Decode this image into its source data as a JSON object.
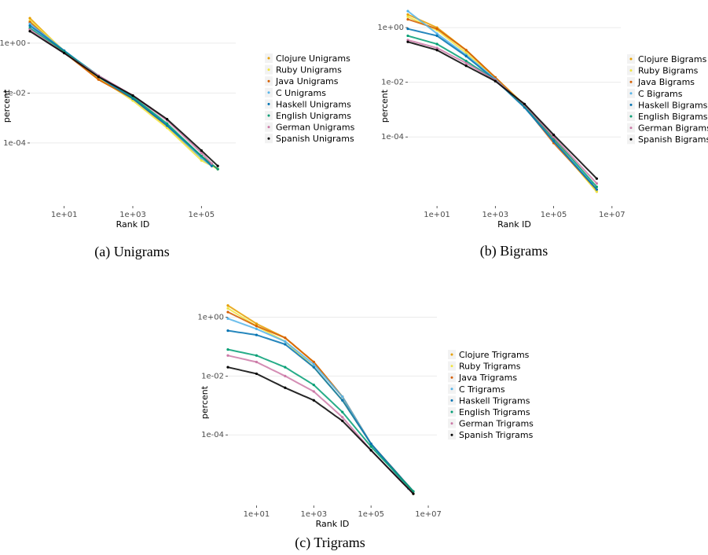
{
  "chart_data": [
    {
      "type": "scatter",
      "caption": "(a) Unigrams",
      "xlabel": "Rank ID",
      "ylabel": "percent",
      "x_scale": "log10",
      "y_scale": "log10",
      "xlim": [
        1,
        1000000
      ],
      "ylim": [
        3e-07,
        30
      ],
      "x_ticks": [
        "1e+01",
        "1e+03",
        "1e+05"
      ],
      "y_ticks": [
        "1e+00",
        "1e-02",
        "1e-04"
      ],
      "grid": true,
      "legend_position": "right",
      "series": [
        {
          "name": "Clojure Unigrams",
          "color": "#e69f00",
          "points": [
            [
              1,
              10
            ],
            [
              10,
              0.45
            ],
            [
              100,
              0.035
            ],
            [
              1000,
              0.006
            ],
            [
              10000,
              0.00045
            ],
            [
              100000,
              2.5e-05
            ],
            [
              200000,
              1.2e-05
            ]
          ]
        },
        {
          "name": "Ruby Unigrams",
          "color": "#f0e442",
          "points": [
            [
              1,
              8
            ],
            [
              10,
              0.5
            ],
            [
              100,
              0.04
            ],
            [
              1000,
              0.005
            ],
            [
              10000,
              0.0004
            ],
            [
              100000,
              2e-05
            ],
            [
              300000,
              9e-06
            ]
          ]
        },
        {
          "name": "Java Unigrams",
          "color": "#d55e00",
          "points": [
            [
              1,
              7
            ],
            [
              10,
              0.42
            ],
            [
              100,
              0.035
            ],
            [
              1000,
              0.006
            ],
            [
              10000,
              0.0005
            ],
            [
              100000,
              3e-05
            ],
            [
              300000,
              9e-06
            ]
          ]
        },
        {
          "name": "C Unigrams",
          "color": "#56b4e9",
          "points": [
            [
              1,
              6
            ],
            [
              10,
              0.5
            ],
            [
              100,
              0.05
            ],
            [
              1000,
              0.007
            ],
            [
              10000,
              0.0005
            ],
            [
              100000,
              2.5e-05
            ],
            [
              200000,
              1.2e-05
            ]
          ]
        },
        {
          "name": "Haskell Unigrams",
          "color": "#0072b2",
          "points": [
            [
              1,
              5
            ],
            [
              10,
              0.5
            ],
            [
              100,
              0.045
            ],
            [
              1000,
              0.006
            ],
            [
              10000,
              0.0005
            ],
            [
              100000,
              3e-05
            ],
            [
              200000,
              1.2e-05
            ]
          ]
        },
        {
          "name": "English Unigrams",
          "color": "#009e73",
          "points": [
            [
              1,
              4
            ],
            [
              10,
              0.45
            ],
            [
              100,
              0.05
            ],
            [
              1000,
              0.007
            ],
            [
              10000,
              0.0006
            ],
            [
              100000,
              3e-05
            ],
            [
              300000,
              9e-06
            ]
          ]
        },
        {
          "name": "German Unigrams",
          "color": "#cc79a7",
          "points": [
            [
              1,
              3.5
            ],
            [
              10,
              0.4
            ],
            [
              100,
              0.05
            ],
            [
              1000,
              0.008
            ],
            [
              10000,
              0.0008
            ],
            [
              100000,
              4e-05
            ],
            [
              200000,
              1.5e-05
            ]
          ]
        },
        {
          "name": "Spanish Unigrams",
          "color": "#000000",
          "points": [
            [
              1,
              3
            ],
            [
              10,
              0.4
            ],
            [
              100,
              0.045
            ],
            [
              1000,
              0.008
            ],
            [
              10000,
              0.0009
            ],
            [
              100000,
              5e-05
            ],
            [
              300000,
              1.2e-05
            ]
          ]
        }
      ]
    },
    {
      "type": "scatter",
      "caption": "(b) Bigrams",
      "xlabel": "Rank ID",
      "ylabel": "percent",
      "x_scale": "log10",
      "y_scale": "log10",
      "xlim": [
        1,
        20000000
      ],
      "ylim": [
        3e-07,
        6
      ],
      "x_ticks": [
        "1e+01",
        "1e+03",
        "1e+05",
        "1e+07"
      ],
      "y_ticks": [
        "1e+00",
        "1e-02",
        "1e-04"
      ],
      "grid": true,
      "legend_position": "right",
      "series": [
        {
          "name": "Clojure Bigrams",
          "color": "#e69f00",
          "points": [
            [
              1,
              3
            ],
            [
              10,
              1
            ],
            [
              100,
              0.15
            ],
            [
              1000,
              0.015
            ],
            [
              10000,
              0.0015
            ],
            [
              100000,
              8e-05
            ],
            [
              3000000,
              1e-06
            ]
          ]
        },
        {
          "name": "Ruby Bigrams",
          "color": "#f0e442",
          "points": [
            [
              1,
              2.5
            ],
            [
              10,
              0.8
            ],
            [
              100,
              0.12
            ],
            [
              1000,
              0.014
            ],
            [
              10000,
              0.0014
            ],
            [
              100000,
              7e-05
            ],
            [
              3000000,
              1e-06
            ]
          ]
        },
        {
          "name": "Java Bigrams",
          "color": "#d55e00",
          "points": [
            [
              1,
              2
            ],
            [
              10,
              0.9
            ],
            [
              100,
              0.15
            ],
            [
              1000,
              0.015
            ],
            [
              10000,
              0.0013
            ],
            [
              100000,
              6e-05
            ],
            [
              3000000,
              1.2e-06
            ]
          ]
        },
        {
          "name": "C Bigrams",
          "color": "#56b4e9",
          "points": [
            [
              1,
              4
            ],
            [
              10,
              0.6
            ],
            [
              100,
              0.1
            ],
            [
              1000,
              0.013
            ],
            [
              10000,
              0.0013
            ],
            [
              100000,
              7e-05
            ],
            [
              2000000,
              2e-06
            ]
          ]
        },
        {
          "name": "Haskell Bigrams",
          "color": "#0072b2",
          "points": [
            [
              1,
              0.9
            ],
            [
              10,
              0.5
            ],
            [
              100,
              0.09
            ],
            [
              1000,
              0.012
            ],
            [
              10000,
              0.0012
            ],
            [
              100000,
              7e-05
            ],
            [
              3000000,
              1.2e-06
            ]
          ]
        },
        {
          "name": "English Bigrams",
          "color": "#009e73",
          "points": [
            [
              1,
              0.5
            ],
            [
              10,
              0.25
            ],
            [
              100,
              0.06
            ],
            [
              1000,
              0.012
            ],
            [
              10000,
              0.0014
            ],
            [
              100000,
              9e-05
            ],
            [
              3000000,
              1.5e-06
            ]
          ]
        },
        {
          "name": "German Bigrams",
          "color": "#cc79a7",
          "points": [
            [
              1,
              0.35
            ],
            [
              10,
              0.18
            ],
            [
              100,
              0.05
            ],
            [
              1000,
              0.012
            ],
            [
              10000,
              0.0015
            ],
            [
              100000,
              0.0001
            ],
            [
              3000000,
              2e-06
            ]
          ]
        },
        {
          "name": "Spanish Bigrams",
          "color": "#000000",
          "points": [
            [
              1,
              0.3
            ],
            [
              10,
              0.15
            ],
            [
              100,
              0.04
            ],
            [
              1000,
              0.011
            ],
            [
              10000,
              0.0016
            ],
            [
              100000,
              0.00012
            ],
            [
              3000000,
              3e-06
            ]
          ]
        }
      ]
    },
    {
      "type": "scatter",
      "caption": "(c) Trigrams",
      "xlabel": "Rank ID",
      "ylabel": "percent",
      "x_scale": "log10",
      "y_scale": "log10",
      "xlim": [
        1,
        20000000
      ],
      "ylim": [
        4e-07,
        4
      ],
      "x_ticks": [
        "1e+01",
        "1e+03",
        "1e+05",
        "1e+07"
      ],
      "y_ticks": [
        "1e+00",
        "1e-02",
        "1e-04"
      ],
      "grid": true,
      "legend_position": "right",
      "series": [
        {
          "name": "Clojure Trigrams",
          "color": "#e69f00",
          "points": [
            [
              1,
              2.5
            ],
            [
              10,
              0.6
            ],
            [
              100,
              0.2
            ],
            [
              1000,
              0.03
            ],
            [
              10000,
              0.002
            ],
            [
              100000,
              5e-05
            ],
            [
              3000000,
              1e-06
            ]
          ]
        },
        {
          "name": "Ruby Trigrams",
          "color": "#f0e442",
          "points": [
            [
              1,
              2
            ],
            [
              10,
              0.5
            ],
            [
              100,
              0.15
            ],
            [
              1000,
              0.02
            ],
            [
              10000,
              0.0015
            ],
            [
              100000,
              5e-05
            ],
            [
              3000000,
              1e-06
            ]
          ]
        },
        {
          "name": "Java Trigrams",
          "color": "#d55e00",
          "points": [
            [
              1,
              1.5
            ],
            [
              10,
              0.5
            ],
            [
              100,
              0.2
            ],
            [
              1000,
              0.03
            ],
            [
              10000,
              0.002
            ],
            [
              100000,
              5e-05
            ],
            [
              3000000,
              1.2e-06
            ]
          ]
        },
        {
          "name": "C Trigrams",
          "color": "#56b4e9",
          "points": [
            [
              1,
              0.9
            ],
            [
              10,
              0.4
            ],
            [
              100,
              0.15
            ],
            [
              1000,
              0.025
            ],
            [
              10000,
              0.002
            ],
            [
              100000,
              5e-05
            ],
            [
              2000000,
              1.5e-06
            ]
          ]
        },
        {
          "name": "Haskell Trigrams",
          "color": "#0072b2",
          "points": [
            [
              1,
              0.35
            ],
            [
              10,
              0.25
            ],
            [
              100,
              0.12
            ],
            [
              1000,
              0.02
            ],
            [
              10000,
              0.0015
            ],
            [
              100000,
              5e-05
            ],
            [
              3000000,
              1.2e-06
            ]
          ]
        },
        {
          "name": "English Trigrams",
          "color": "#009e73",
          "points": [
            [
              1,
              0.08
            ],
            [
              10,
              0.05
            ],
            [
              100,
              0.02
            ],
            [
              1000,
              0.005
            ],
            [
              10000,
              0.0006
            ],
            [
              100000,
              4e-05
            ],
            [
              3000000,
              1.2e-06
            ]
          ]
        },
        {
          "name": "German Trigrams",
          "color": "#cc79a7",
          "points": [
            [
              1,
              0.05
            ],
            [
              10,
              0.03
            ],
            [
              100,
              0.01
            ],
            [
              1000,
              0.003
            ],
            [
              10000,
              0.0004
            ],
            [
              100000,
              3e-05
            ],
            [
              3000000,
              1e-06
            ]
          ]
        },
        {
          "name": "Spanish Trigrams",
          "color": "#000000",
          "points": [
            [
              1,
              0.02
            ],
            [
              10,
              0.012
            ],
            [
              100,
              0.004
            ],
            [
              1000,
              0.0015
            ],
            [
              10000,
              0.0003
            ],
            [
              100000,
              3e-05
            ],
            [
              3000000,
              1e-06
            ]
          ]
        }
      ]
    }
  ]
}
